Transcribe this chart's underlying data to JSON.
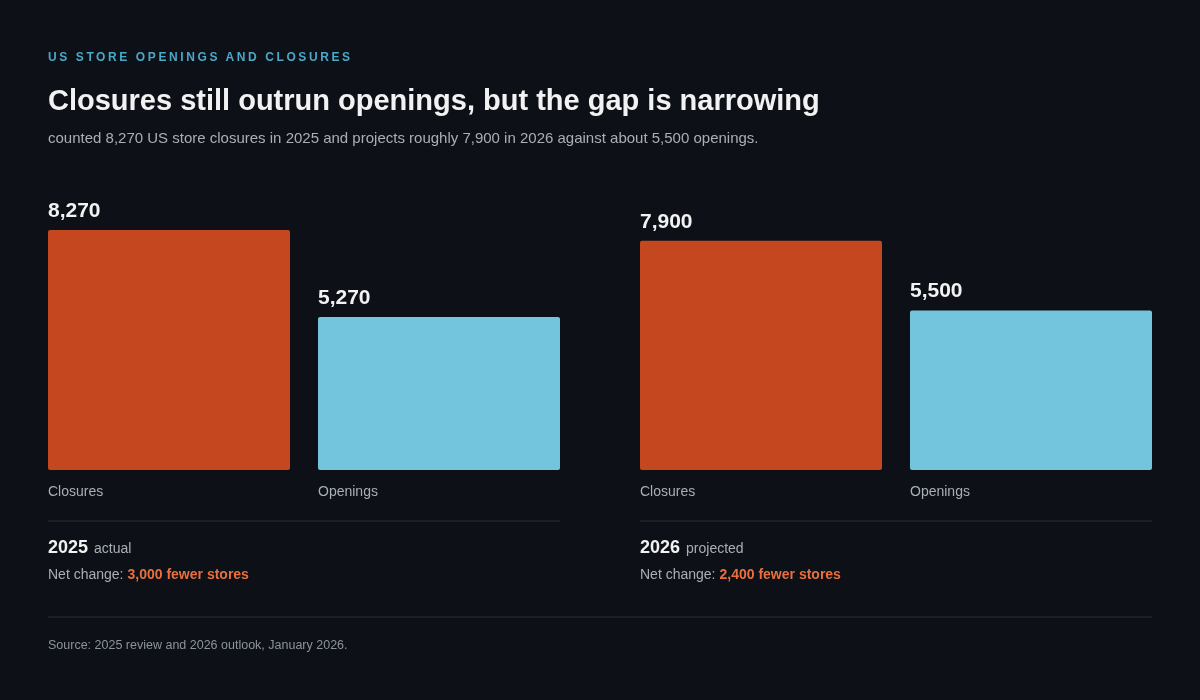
{
  "chart_data": [
    {
      "type": "other",
      "title": "Closures still outrun openings, but the gap is narrowing",
      "subtitle": "counted 8,270 US store closures in 2025 and projects roughly 7,900 in 2026 against about 5,500 openings.",
      "annotations": [
        "US STORE OPENINGS AND CLOSURES",
        "Source: 2025 review and 2026 outlook, January 2026."
      ]
    },
    {
      "type": "bar",
      "categories": [
        "Closures",
        "Openings"
      ],
      "values": [
        8270,
        5270
      ],
      "colors": [
        "#c4471f",
        "#72c5dc"
      ],
      "value_labels": [
        "8,270",
        "5,270"
      ],
      "xlabel": "2025",
      "annotations": [
        "actual",
        "Net change:",
        "3,000 fewer stores"
      ]
    },
    {
      "type": "bar",
      "categories": [
        "Closures",
        "Openings"
      ],
      "values": [
        7900,
        5500
      ],
      "colors": [
        "#c4471f",
        "#72c5dc"
      ],
      "value_labels": [
        "7,900",
        "5,500"
      ],
      "xlabel": "2026",
      "annotations": [
        "projected",
        "Net change:",
        "2,400 fewer stores"
      ]
    }
  ]
}
